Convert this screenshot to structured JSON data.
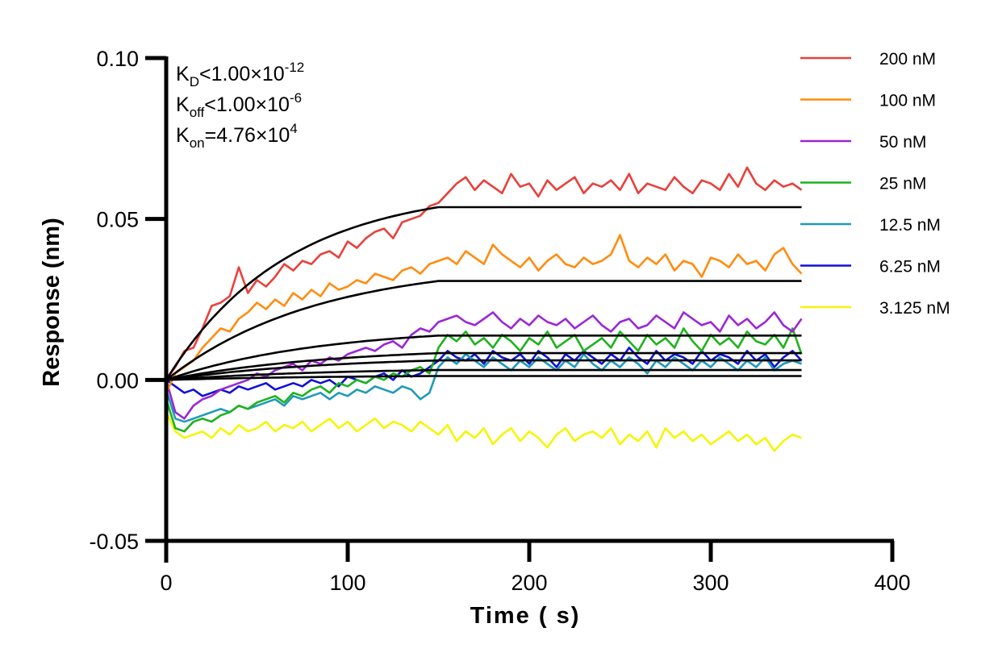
{
  "chart_data": {
    "type": "line",
    "title": "",
    "xlabel": "Time ( s)",
    "ylabel": "Response (nm)",
    "xlim": [
      0,
      400
    ],
    "ylim": [
      -0.05,
      0.1
    ],
    "xticks": [
      0,
      100,
      200,
      300,
      400
    ],
    "xtick_labels": [
      "0",
      "100",
      "200",
      "300",
      "400"
    ],
    "yticks": [
      -0.05,
      0.0,
      0.05,
      0.1
    ],
    "ytick_labels": [
      "-0.05",
      "0.00",
      "0.05",
      "0.10"
    ],
    "grid": false,
    "legend_position": "top-right",
    "annotations": [
      {
        "name": "kd",
        "symbol": "K",
        "sub": "D",
        "relation": "<",
        "mantissa": "1.00×10",
        "exponent": "-12"
      },
      {
        "name": "koff",
        "symbol": "K",
        "sub": "off",
        "relation": "<",
        "mantissa": "1.00×10",
        "exponent": "-6"
      },
      {
        "name": "kon",
        "symbol": "K",
        "sub": "on",
        "relation": "=",
        "mantissa": "4.76×10",
        "exponent": "4"
      }
    ],
    "association_end_s": 150,
    "end_s": 350,
    "fit_color": "#000000",
    "x": [
      0,
      5,
      10,
      15,
      20,
      25,
      30,
      35,
      40,
      45,
      50,
      55,
      60,
      65,
      70,
      75,
      80,
      85,
      90,
      95,
      100,
      105,
      110,
      115,
      120,
      125,
      130,
      135,
      140,
      145,
      150,
      155,
      160,
      165,
      170,
      175,
      180,
      185,
      190,
      195,
      200,
      205,
      210,
      215,
      220,
      225,
      230,
      235,
      240,
      245,
      250,
      255,
      260,
      265,
      270,
      275,
      280,
      285,
      290,
      295,
      300,
      305,
      310,
      315,
      320,
      325,
      330,
      335,
      340,
      345,
      350
    ],
    "series": [
      {
        "name": "200 nM",
        "color": "#e8413c",
        "fit_plateau": 0.0598,
        "fit_rate": 0.0152,
        "values": [
          0.0,
          0.004,
          0.009,
          0.01,
          0.016,
          0.023,
          0.024,
          0.026,
          0.035,
          0.027,
          0.031,
          0.029,
          0.032,
          0.036,
          0.034,
          0.037,
          0.036,
          0.039,
          0.04,
          0.038,
          0.043,
          0.041,
          0.044,
          0.046,
          0.047,
          0.044,
          0.049,
          0.05,
          0.051,
          0.054,
          0.055,
          0.058,
          0.061,
          0.063,
          0.059,
          0.062,
          0.06,
          0.058,
          0.064,
          0.06,
          0.061,
          0.057,
          0.062,
          0.059,
          0.061,
          0.063,
          0.058,
          0.061,
          0.06,
          0.062,
          0.059,
          0.064,
          0.058,
          0.061,
          0.06,
          0.059,
          0.063,
          0.06,
          0.058,
          0.062,
          0.061,
          0.059,
          0.064,
          0.06,
          0.066,
          0.061,
          0.059,
          0.062,
          0.06,
          0.061,
          0.059
        ]
      },
      {
        "name": "100 nM",
        "color": "#ff8c0f",
        "fit_plateau": 0.0366,
        "fit_rate": 0.0122,
        "values": [
          -0.004,
          0.002,
          0.004,
          0.006,
          0.01,
          0.013,
          0.016,
          0.015,
          0.019,
          0.021,
          0.024,
          0.022,
          0.025,
          0.023,
          0.027,
          0.025,
          0.028,
          0.026,
          0.03,
          0.028,
          0.029,
          0.031,
          0.03,
          0.033,
          0.032,
          0.031,
          0.034,
          0.035,
          0.033,
          0.036,
          0.037,
          0.038,
          0.036,
          0.04,
          0.038,
          0.036,
          0.042,
          0.039,
          0.037,
          0.035,
          0.038,
          0.034,
          0.037,
          0.039,
          0.036,
          0.035,
          0.038,
          0.036,
          0.037,
          0.039,
          0.045,
          0.037,
          0.035,
          0.038,
          0.036,
          0.039,
          0.034,
          0.037,
          0.036,
          0.032,
          0.038,
          0.037,
          0.035,
          0.039,
          0.036,
          0.037,
          0.034,
          0.039,
          0.041,
          0.036,
          0.033
        ]
      },
      {
        "name": "50 nM",
        "color": "#9b26d6",
        "fit_plateau": 0.0166,
        "fit_rate": 0.0118,
        "values": [
          0.0,
          -0.01,
          -0.012,
          -0.008,
          -0.006,
          -0.005,
          -0.003,
          -0.002,
          -0.001,
          0.0,
          0.002,
          0.001,
          0.003,
          0.004,
          0.005,
          0.003,
          0.006,
          0.005,
          0.007,
          0.006,
          0.008,
          0.009,
          0.01,
          0.009,
          0.011,
          0.012,
          0.01,
          0.014,
          0.016,
          0.015,
          0.018,
          0.019,
          0.02,
          0.018,
          0.017,
          0.019,
          0.021,
          0.018,
          0.016,
          0.019,
          0.017,
          0.02,
          0.018,
          0.017,
          0.019,
          0.016,
          0.018,
          0.02,
          0.017,
          0.015,
          0.018,
          0.019,
          0.016,
          0.017,
          0.02,
          0.018,
          0.016,
          0.021,
          0.019,
          0.017,
          0.018,
          0.015,
          0.02,
          0.017,
          0.019,
          0.016,
          0.018,
          0.021,
          0.017,
          0.015,
          0.019
        ]
      },
      {
        "name": "25 nM",
        "color": "#1db31d",
        "fit_plateau": 0.0103,
        "fit_rate": 0.011,
        "values": [
          -0.006,
          -0.015,
          -0.016,
          -0.013,
          -0.012,
          -0.013,
          -0.011,
          -0.01,
          -0.008,
          -0.009,
          -0.007,
          -0.006,
          -0.005,
          -0.007,
          -0.004,
          -0.005,
          -0.003,
          -0.002,
          -0.004,
          -0.001,
          -0.002,
          0.0,
          -0.001,
          0.001,
          0.0,
          0.002,
          0.001,
          0.003,
          0.004,
          0.002,
          0.01,
          0.014,
          0.012,
          0.015,
          0.011,
          0.013,
          0.01,
          0.014,
          0.012,
          0.009,
          0.013,
          0.011,
          0.015,
          0.01,
          0.012,
          0.014,
          0.009,
          0.011,
          0.013,
          0.01,
          0.015,
          0.012,
          0.009,
          0.014,
          0.011,
          0.013,
          0.01,
          0.016,
          0.012,
          0.009,
          0.014,
          0.011,
          0.013,
          0.01,
          0.015,
          0.012,
          0.011,
          0.014,
          0.01,
          0.016,
          0.008
        ]
      },
      {
        "name": "12.5 nM",
        "color": "#1f9ab8",
        "fit_plateau": 0.0015,
        "fit_rate": 0.011,
        "values": [
          -0.003,
          -0.012,
          -0.013,
          -0.012,
          -0.011,
          -0.01,
          -0.009,
          -0.01,
          -0.008,
          -0.009,
          -0.008,
          -0.007,
          -0.006,
          -0.008,
          -0.005,
          -0.006,
          -0.005,
          -0.004,
          -0.006,
          -0.004,
          -0.005,
          -0.003,
          -0.004,
          -0.002,
          -0.003,
          -0.004,
          -0.002,
          -0.003,
          -0.006,
          -0.004,
          0.004,
          0.007,
          0.005,
          0.008,
          0.006,
          0.004,
          0.007,
          0.005,
          0.003,
          0.006,
          0.004,
          0.007,
          0.005,
          0.003,
          0.006,
          0.004,
          0.008,
          0.005,
          0.003,
          0.006,
          0.004,
          0.007,
          0.005,
          0.002,
          0.006,
          0.004,
          0.007,
          0.005,
          0.003,
          0.006,
          0.004,
          0.007,
          0.005,
          0.003,
          0.006,
          0.004,
          0.007,
          0.003,
          0.005,
          0.006,
          0.005
        ]
      },
      {
        "name": "6.25 nM",
        "color": "#1010d8",
        "fit_plateau": 0.0075,
        "fit_rate": 0.011,
        "values": [
          0.0,
          -0.002,
          -0.004,
          -0.003,
          -0.005,
          -0.004,
          -0.003,
          -0.004,
          -0.002,
          -0.003,
          -0.002,
          -0.001,
          -0.003,
          -0.002,
          -0.001,
          -0.002,
          0.0,
          -0.001,
          0.0,
          -0.002,
          0.001,
          0.0,
          -0.001,
          0.001,
          0.002,
          0.0,
          0.003,
          0.001,
          0.002,
          0.004,
          0.006,
          0.009,
          0.007,
          0.006,
          0.008,
          0.005,
          0.009,
          0.007,
          0.006,
          0.008,
          0.005,
          0.009,
          0.007,
          0.004,
          0.008,
          0.006,
          0.009,
          0.007,
          0.005,
          0.008,
          0.006,
          0.01,
          0.007,
          0.005,
          0.009,
          0.006,
          0.008,
          0.007,
          0.005,
          0.009,
          0.006,
          0.008,
          0.007,
          0.005,
          0.009,
          0.006,
          0.008,
          0.004,
          0.007,
          0.009,
          0.006
        ]
      },
      {
        "name": "3.125 nM",
        "color": "#f5f50a",
        "fit_plateau": 0.0038,
        "fit_rate": 0.011,
        "values": [
          -0.01,
          -0.016,
          -0.018,
          -0.017,
          -0.016,
          -0.018,
          -0.015,
          -0.017,
          -0.014,
          -0.016,
          -0.015,
          -0.013,
          -0.016,
          -0.014,
          -0.015,
          -0.013,
          -0.016,
          -0.014,
          -0.012,
          -0.015,
          -0.013,
          -0.016,
          -0.014,
          -0.012,
          -0.015,
          -0.013,
          -0.014,
          -0.016,
          -0.013,
          -0.015,
          -0.017,
          -0.014,
          -0.019,
          -0.016,
          -0.018,
          -0.015,
          -0.02,
          -0.017,
          -0.015,
          -0.019,
          -0.016,
          -0.018,
          -0.021,
          -0.017,
          -0.015,
          -0.019,
          -0.017,
          -0.016,
          -0.018,
          -0.015,
          -0.02,
          -0.017,
          -0.019,
          -0.016,
          -0.021,
          -0.015,
          -0.018,
          -0.016,
          -0.019,
          -0.017,
          -0.02,
          -0.018,
          -0.016,
          -0.019,
          -0.017,
          -0.02,
          -0.018,
          -0.022,
          -0.019,
          -0.017,
          -0.018
        ]
      }
    ]
  }
}
